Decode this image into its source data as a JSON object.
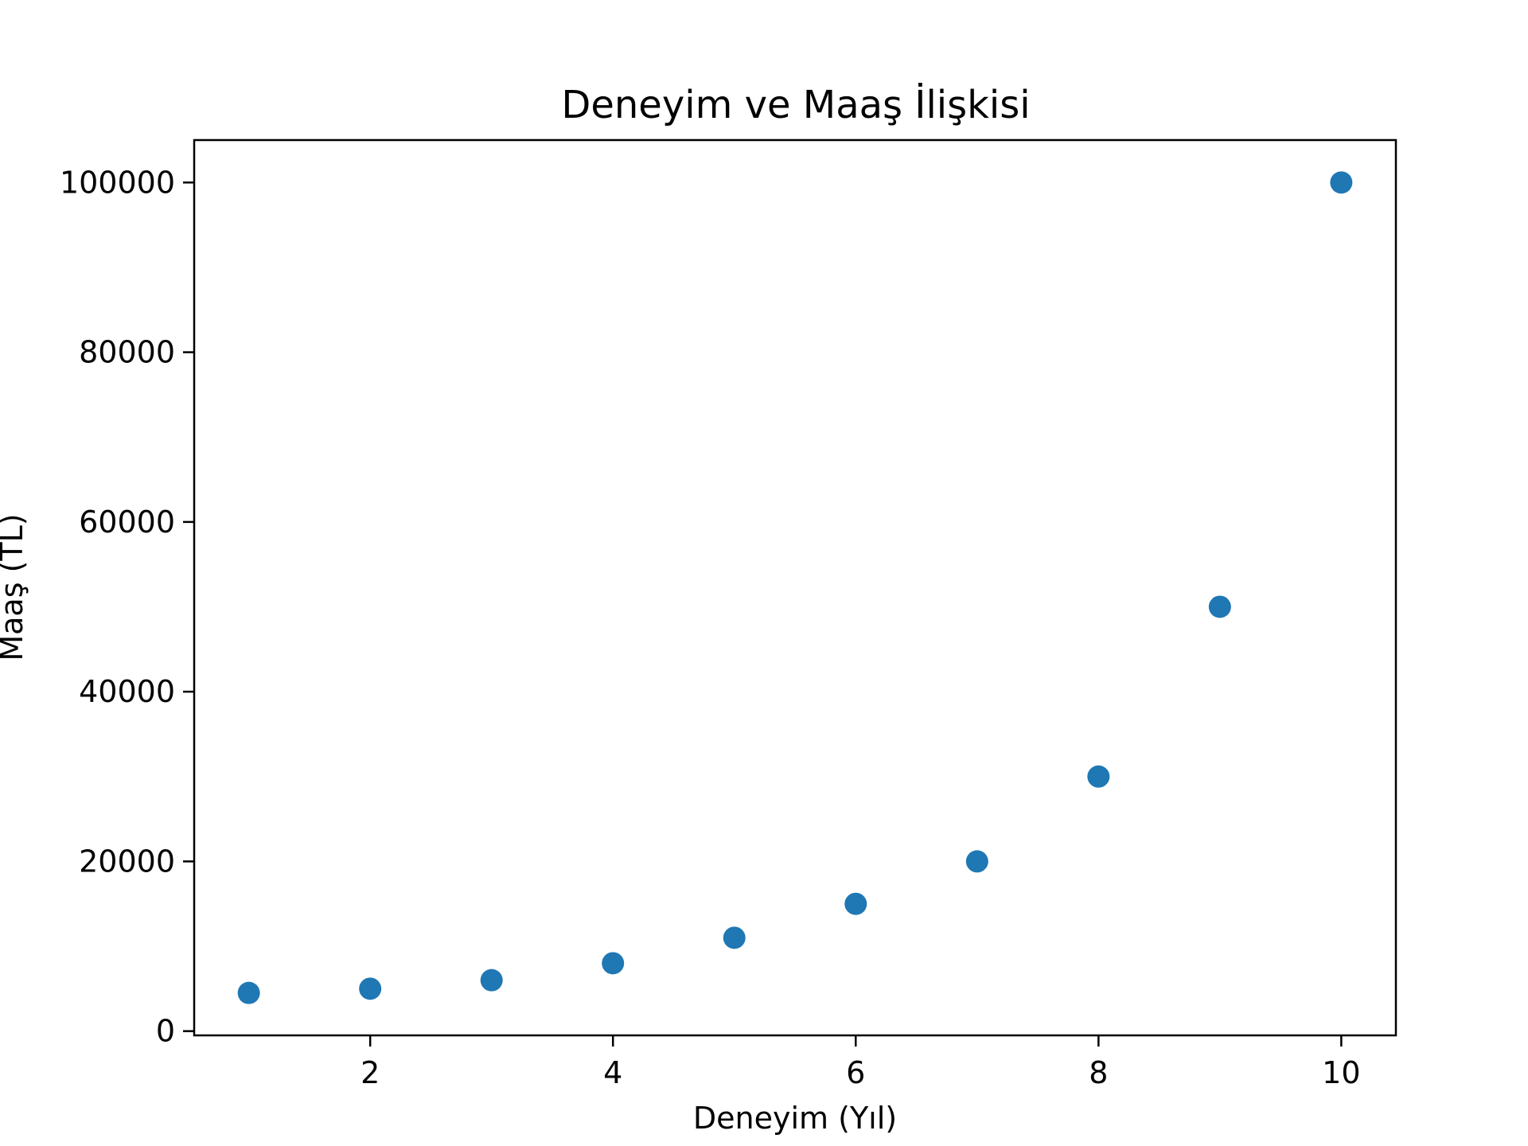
{
  "chart_data": {
    "type": "scatter",
    "title": "Deneyim ve Maaş İlişkisi",
    "xlabel": "Deneyim (Yıl)",
    "ylabel": "Maaş (TL)",
    "xlim": [
      0.55,
      10.45
    ],
    "ylim": [
      -500,
      105000
    ],
    "x_ticks": [
      2,
      4,
      6,
      8,
      10
    ],
    "y_ticks": [
      0,
      20000,
      40000,
      60000,
      80000,
      100000
    ],
    "grid": false,
    "marker_color": "#1f77b4",
    "series": [
      {
        "x": [
          1,
          2,
          3,
          4,
          5,
          6,
          7,
          8,
          9,
          10
        ],
        "y": [
          4500,
          5000,
          6000,
          8000,
          11000,
          15000,
          20000,
          30000,
          50000,
          100000
        ]
      }
    ]
  }
}
